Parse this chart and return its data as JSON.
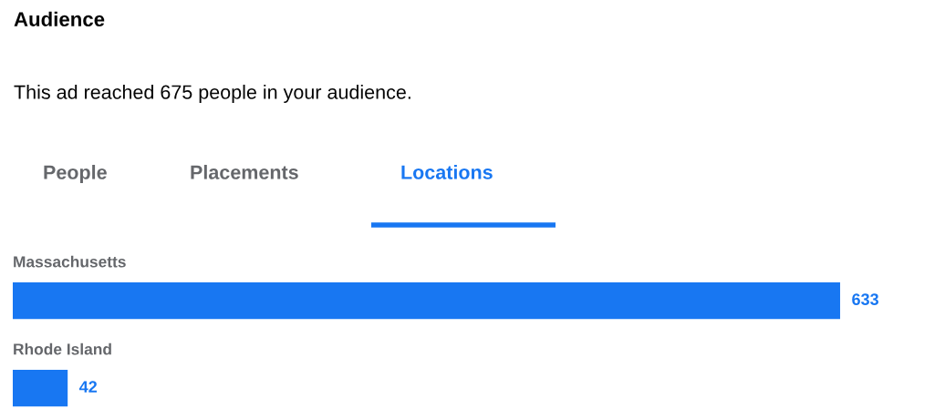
{
  "chart_data": {
    "type": "bar",
    "orientation": "horizontal",
    "title": "Audience",
    "subtitle": "This ad reached 675 people in your audience.",
    "annotations": [
      "People",
      "Placements",
      "Locations"
    ],
    "categories": [
      "Massachusetts",
      "Rhode Island"
    ],
    "values": [
      633,
      42
    ],
    "color": "#1877f2",
    "data_labels": true
  }
}
